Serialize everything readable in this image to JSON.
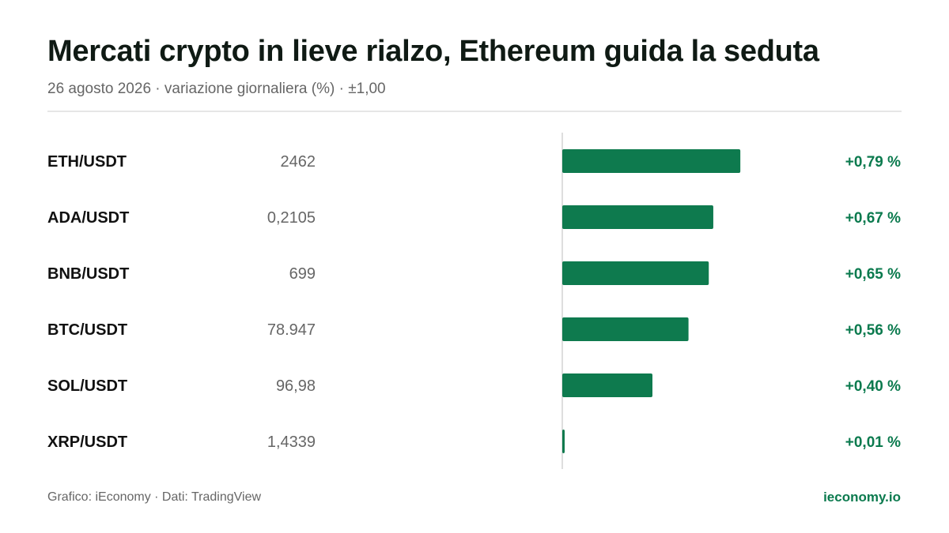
{
  "header": {
    "title": "Mercati crypto in lieve rialzo, Ethereum guida la seduta",
    "subtitle": "26 agosto 2026 · variazione giornaliera (%) · ±1,00"
  },
  "footer": {
    "source": "Grafico: iEconomy · Dati: TradingView",
    "brand": "ieconomy.io"
  },
  "colors": {
    "bar": "#0e7a4e",
    "positive_text": "#0b7a4e",
    "axis": "#d4d4d4",
    "pair_text": "#111111",
    "price_text": "#666666"
  },
  "chart_data": {
    "type": "bar",
    "orientation": "horizontal",
    "xlim": [
      -1.0,
      1.0
    ],
    "grid": false,
    "categories": [
      "ETH/USDT",
      "ADA/USDT",
      "BNB/USDT",
      "BTC/USDT",
      "SOL/USDT",
      "XRP/USDT"
    ],
    "prices": [
      "2462",
      "0,2105",
      "699",
      "78.947",
      "96,98",
      "1,4339"
    ],
    "values": [
      0.79,
      0.67,
      0.65,
      0.56,
      0.4,
      0.01
    ],
    "value_labels": [
      "+0,79 %",
      "+0,67 %",
      "+0,65 %",
      "+0,56 %",
      "+0,40 %",
      "+0,01 %"
    ]
  }
}
